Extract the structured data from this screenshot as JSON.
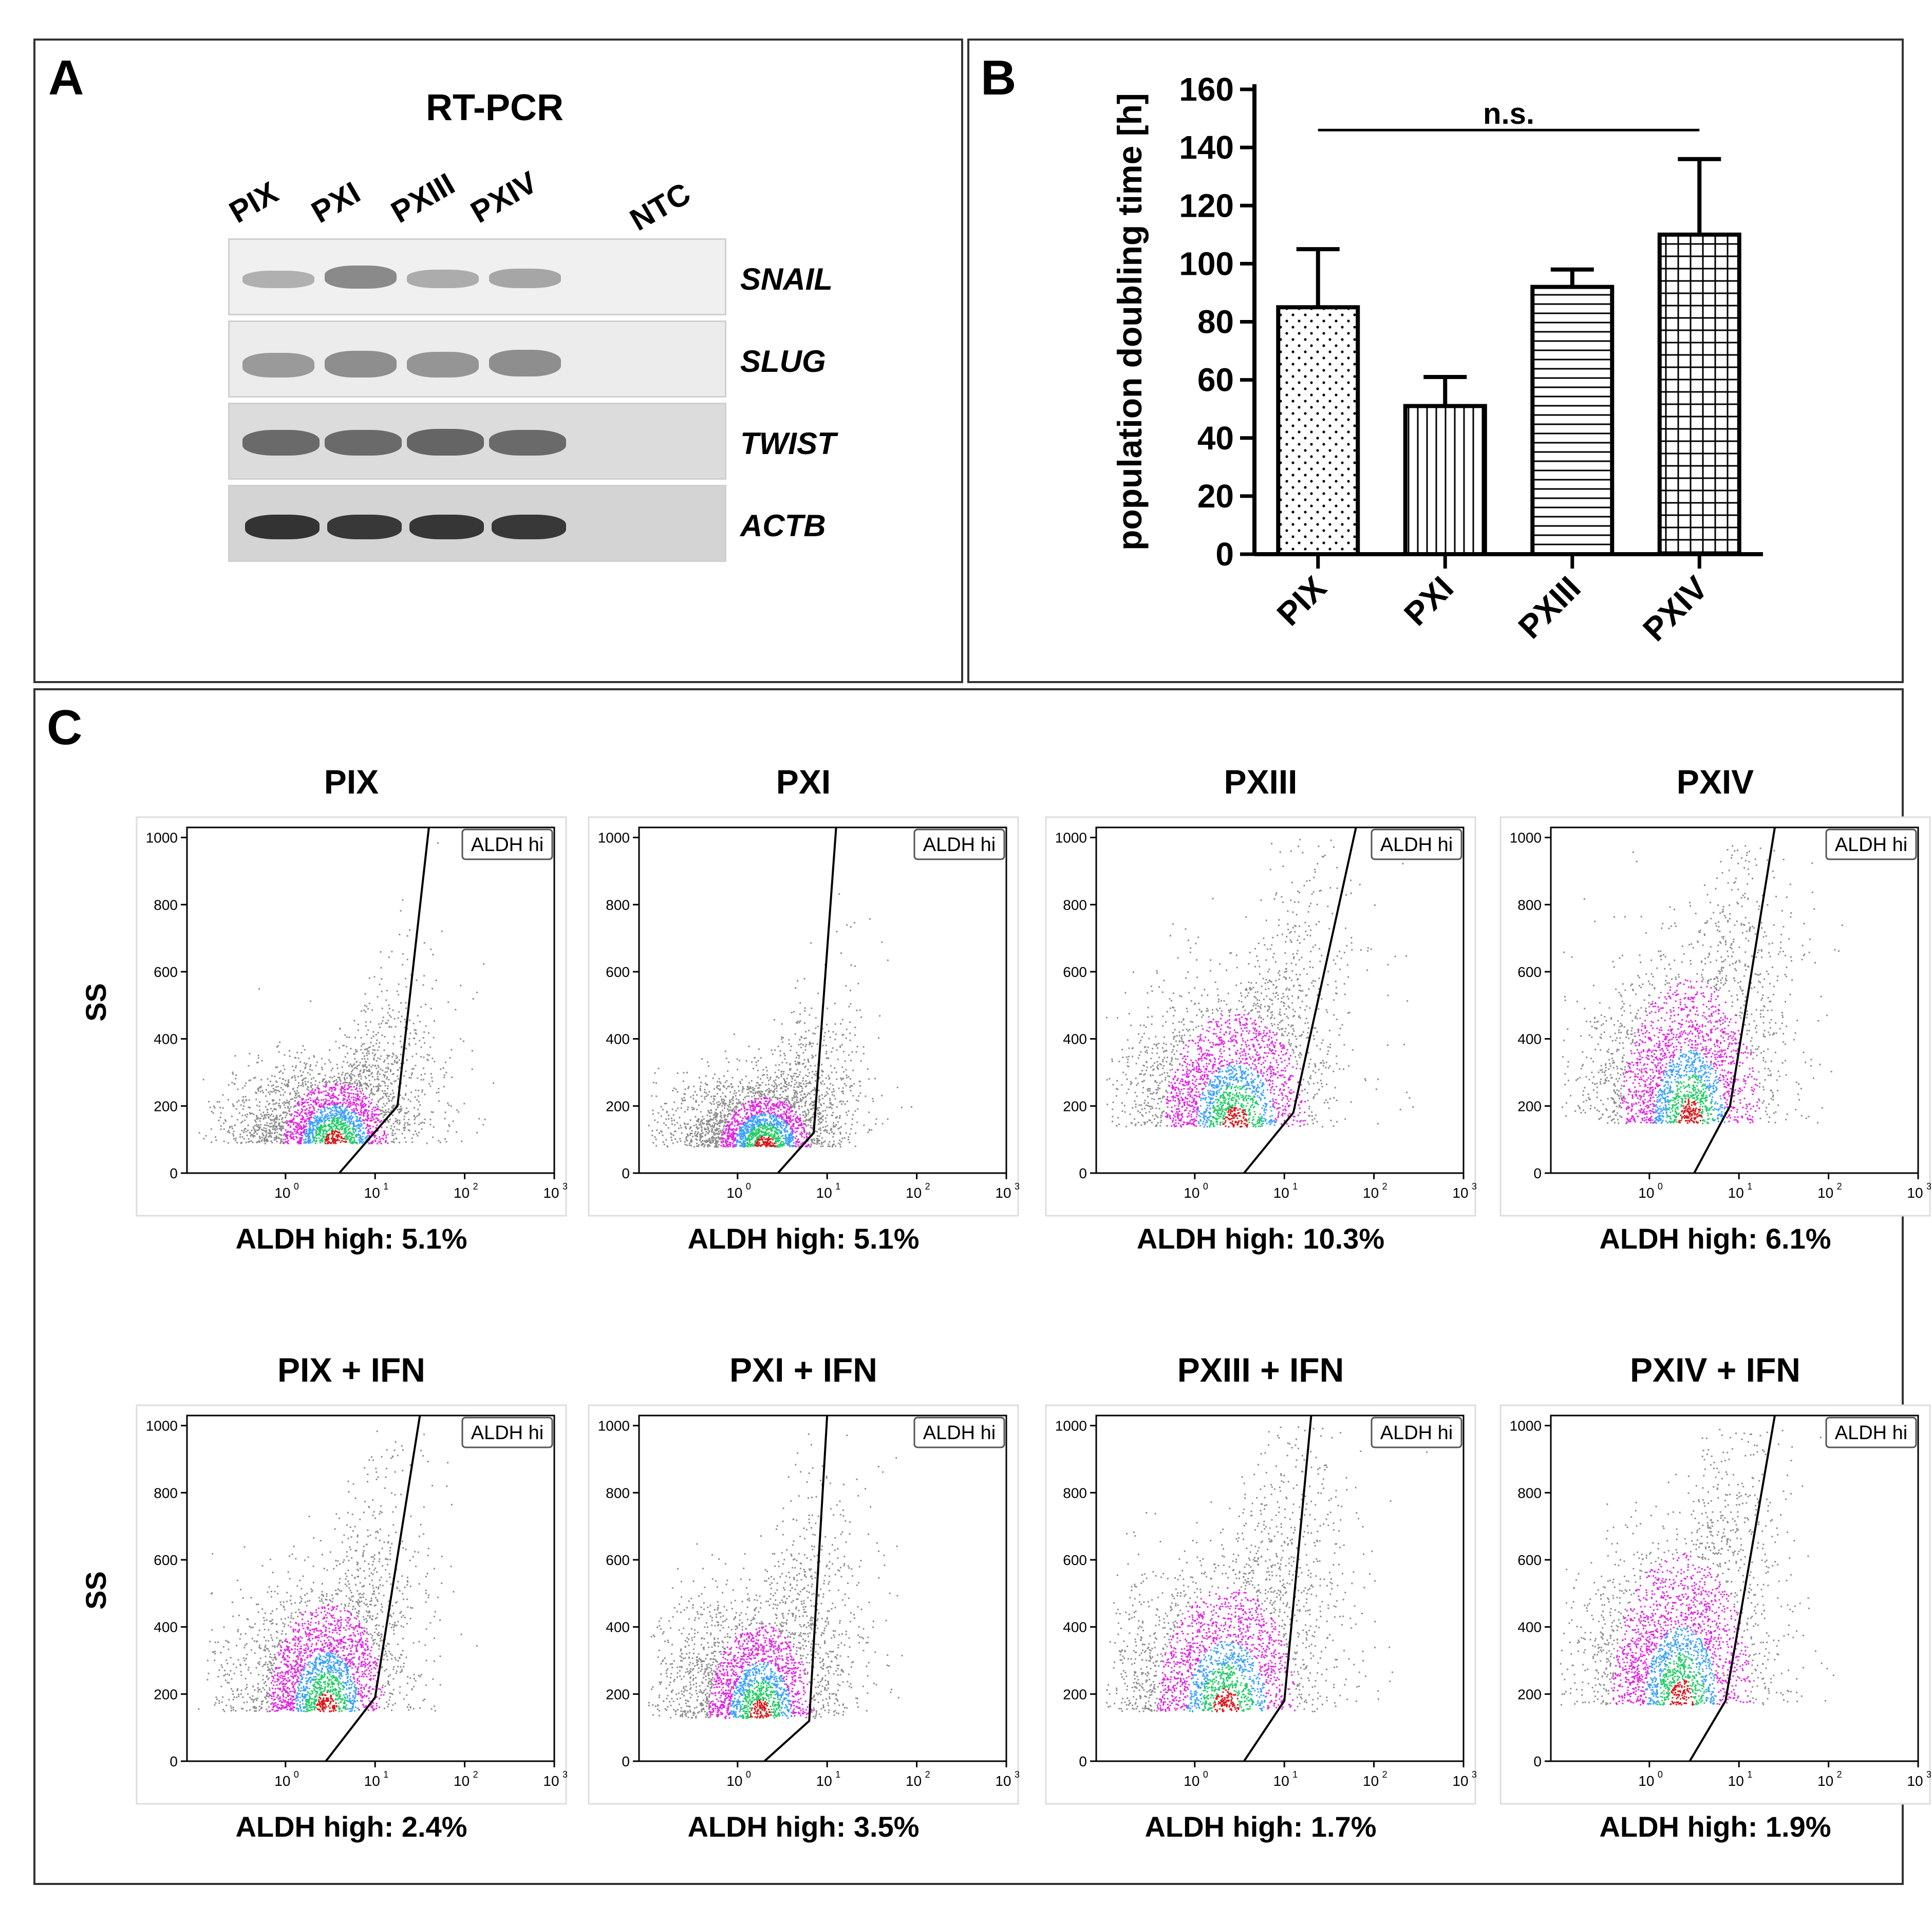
{
  "panel_a": {
    "label": "A",
    "title": "RT-PCR",
    "lanes": [
      "PIX",
      "PXI",
      "PXIII",
      "PXIV",
      "NTC"
    ],
    "genes": [
      "SNAIL",
      "SLUG",
      "TWIST",
      "ACTB"
    ]
  },
  "panel_b": {
    "label": "B"
  },
  "panel_c": {
    "label": "C"
  },
  "chart_data": [
    {
      "type": "bar",
      "title": "",
      "xlabel": "",
      "ylabel": "population doubling time [h]",
      "categories": [
        "PIX",
        "PXI",
        "PXIII",
        "PXIV"
      ],
      "values": [
        85,
        51,
        92,
        110
      ],
      "error_upper": [
        105,
        61,
        98,
        136
      ],
      "patterns": [
        "dots",
        "vertical-lines",
        "horizontal-lines",
        "grid"
      ],
      "ylim": [
        0,
        160
      ],
      "yticks": [
        "0",
        "20",
        "40",
        "60",
        "80",
        "100",
        "120",
        "140",
        "160"
      ],
      "annotation": "n.s."
    },
    {
      "type": "scatter",
      "description": "flow cytometry density plots, SS vs ALDH fluorescence (log)",
      "ylabel": "SS",
      "gate_label": "ALDH hi",
      "yticks": [
        "0",
        "200",
        "400",
        "600",
        "800",
        "1000"
      ],
      "xticks": [
        "10",
        "10",
        "10",
        "10"
      ],
      "xtick_exponents": [
        "0",
        "1",
        "2",
        "3"
      ],
      "plots": [
        {
          "title": "PIX",
          "result": "ALDH high: 5.1%"
        },
        {
          "title": "PXI",
          "result": "ALDH high: 5.1%"
        },
        {
          "title": "PXIII",
          "result": "ALDH high: 10.3%"
        },
        {
          "title": "PXIV",
          "result": "ALDH high: 6.1%"
        },
        {
          "title": "PIX + IFN",
          "result": "ALDH high: 2.4%"
        },
        {
          "title": "PXI + IFN",
          "result": "ALDH high: 3.5%"
        },
        {
          "title": "PXIII + IFN",
          "result": "ALDH high: 1.7%"
        },
        {
          "title": "PXIV + IFN",
          "result": "ALDH high: 1.9%"
        }
      ]
    }
  ]
}
